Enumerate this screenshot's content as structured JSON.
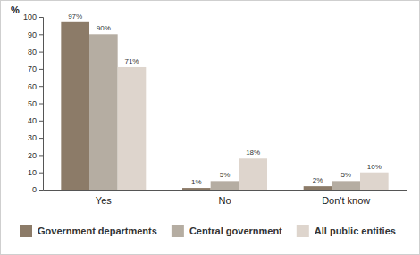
{
  "chart_data": {
    "type": "bar",
    "ylabel": "%",
    "categories": [
      "Yes",
      "No",
      "Don't know"
    ],
    "series": [
      {
        "name": "Government departments",
        "color": "#8c7b68",
        "values": [
          97,
          1,
          2
        ],
        "value_labels": [
          "97%",
          "1%",
          "2%"
        ]
      },
      {
        "name": "Central government",
        "color": "#b5ada2",
        "values": [
          90,
          5,
          5
        ],
        "value_labels": [
          "90%",
          "5%",
          "5%"
        ]
      },
      {
        "name": "All public entities",
        "color": "#ded5cd",
        "values": [
          71,
          18,
          10
        ],
        "value_labels": [
          "71%",
          "18%",
          "10%"
        ]
      }
    ],
    "ylim": [
      0,
      100
    ],
    "yticks": [
      0,
      10,
      20,
      30,
      40,
      50,
      60,
      70,
      80,
      90,
      100
    ],
    "grid": false,
    "legend": "bottom",
    "data_labels": true
  }
}
